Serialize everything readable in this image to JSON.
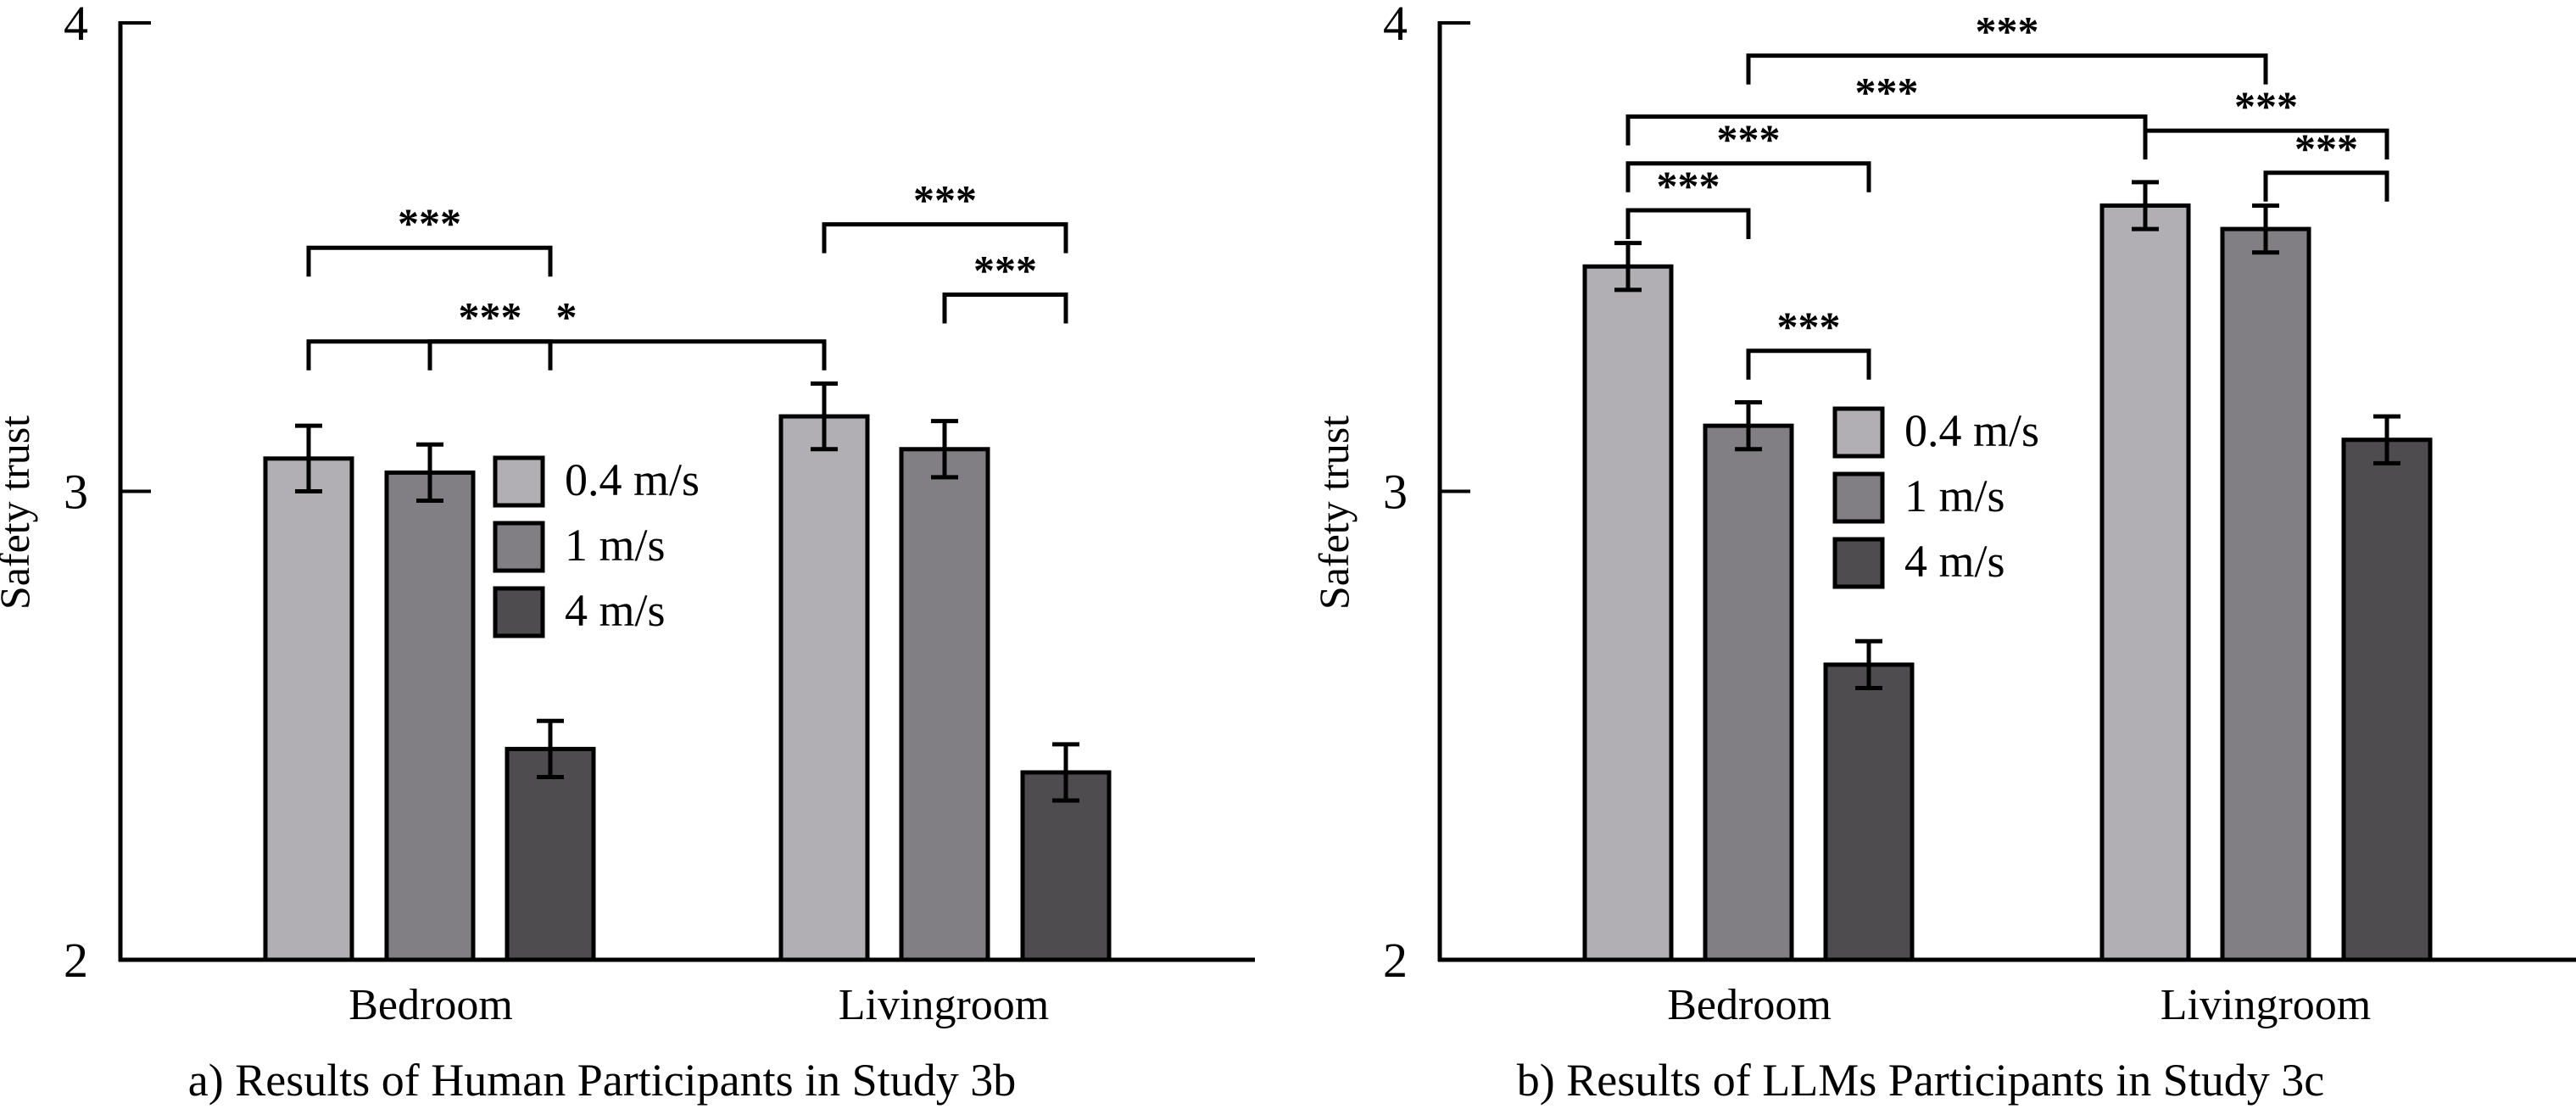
{
  "chart_data": [
    {
      "type": "bar",
      "title": "",
      "caption": "a) Results of Human Participants in Study 3b",
      "xlabel": "",
      "ylabel": "Safety trust",
      "ylim": [
        2,
        4
      ],
      "yticks": [
        "2",
        "3",
        "4"
      ],
      "categories": [
        "Bedroom",
        "Livingroom"
      ],
      "series": [
        {
          "name": "0.4 m/s",
          "color": "#b1afb3",
          "values": [
            3.07,
            3.16
          ],
          "error": [
            0.07,
            0.07
          ]
        },
        {
          "name": "1 m/s",
          "color": "#817f84",
          "values": [
            3.04,
            3.09
          ],
          "error": [
            0.06,
            0.06
          ]
        },
        {
          "name": "4 m/s",
          "color": "#4e4c4e",
          "values": [
            2.45,
            2.4
          ],
          "error": [
            0.06,
            0.06
          ]
        }
      ],
      "legend": {
        "position": "center",
        "items": [
          "0.4 m/s",
          "1 m/s",
          "4 m/s"
        ]
      },
      "significance": [
        {
          "from": [
            0,
            0
          ],
          "to": [
            1,
            0
          ],
          "label": "*",
          "level": 3.32
        },
        {
          "from": [
            0,
            0
          ],
          "to": [
            0,
            2
          ],
          "label": "***",
          "level": 3.52
        },
        {
          "from": [
            1,
            0
          ],
          "to": [
            1,
            2
          ],
          "label": "***",
          "level": 3.57
        },
        {
          "from": [
            1,
            1
          ],
          "to": [
            1,
            2
          ],
          "label": "***",
          "level": 3.42
        },
        {
          "from": [
            0,
            1
          ],
          "to": [
            0,
            2
          ],
          "label": "***",
          "level": 3.32
        }
      ]
    },
    {
      "type": "bar",
      "title": "",
      "caption": "b) Results of LLMs Participants in Study 3c",
      "xlabel": "",
      "ylabel": "Safety trust",
      "ylim": [
        2,
        4
      ],
      "yticks": [
        "2",
        "3",
        "4"
      ],
      "categories": [
        "Bedroom",
        "Livingroom"
      ],
      "series": [
        {
          "name": "0.4 m/s",
          "color": "#b1afb3",
          "values": [
            3.48,
            3.61
          ],
          "error": [
            0.05,
            0.05
          ]
        },
        {
          "name": "1 m/s",
          "color": "#817f84",
          "values": [
            3.14,
            3.56
          ],
          "error": [
            0.05,
            0.05
          ]
        },
        {
          "name": "4 m/s",
          "color": "#4e4c4e",
          "values": [
            2.63,
            3.11
          ],
          "error": [
            0.05,
            0.05
          ]
        }
      ],
      "legend": {
        "position": "center",
        "items": [
          "0.4 m/s",
          "1 m/s",
          "4 m/s"
        ]
      },
      "significance": [
        {
          "from": [
            0,
            1
          ],
          "to": [
            1,
            1
          ],
          "label": "***",
          "level": 3.93
        },
        {
          "from": [
            0,
            0
          ],
          "to": [
            1,
            0
          ],
          "label": "***",
          "level": 3.8
        },
        {
          "from": [
            1,
            0
          ],
          "to": [
            1,
            2
          ],
          "label": "***",
          "level": 3.77
        },
        {
          "from": [
            0,
            0
          ],
          "to": [
            0,
            2
          ],
          "label": "***",
          "level": 3.7
        },
        {
          "from": [
            0,
            0
          ],
          "to": [
            0,
            1
          ],
          "label": "***",
          "level": 3.6
        },
        {
          "from": [
            1,
            1
          ],
          "to": [
            1,
            2
          ],
          "label": "***",
          "level": 3.68
        },
        {
          "from": [
            0,
            1
          ],
          "to": [
            0,
            2
          ],
          "label": "***",
          "level": 3.3
        }
      ]
    }
  ]
}
